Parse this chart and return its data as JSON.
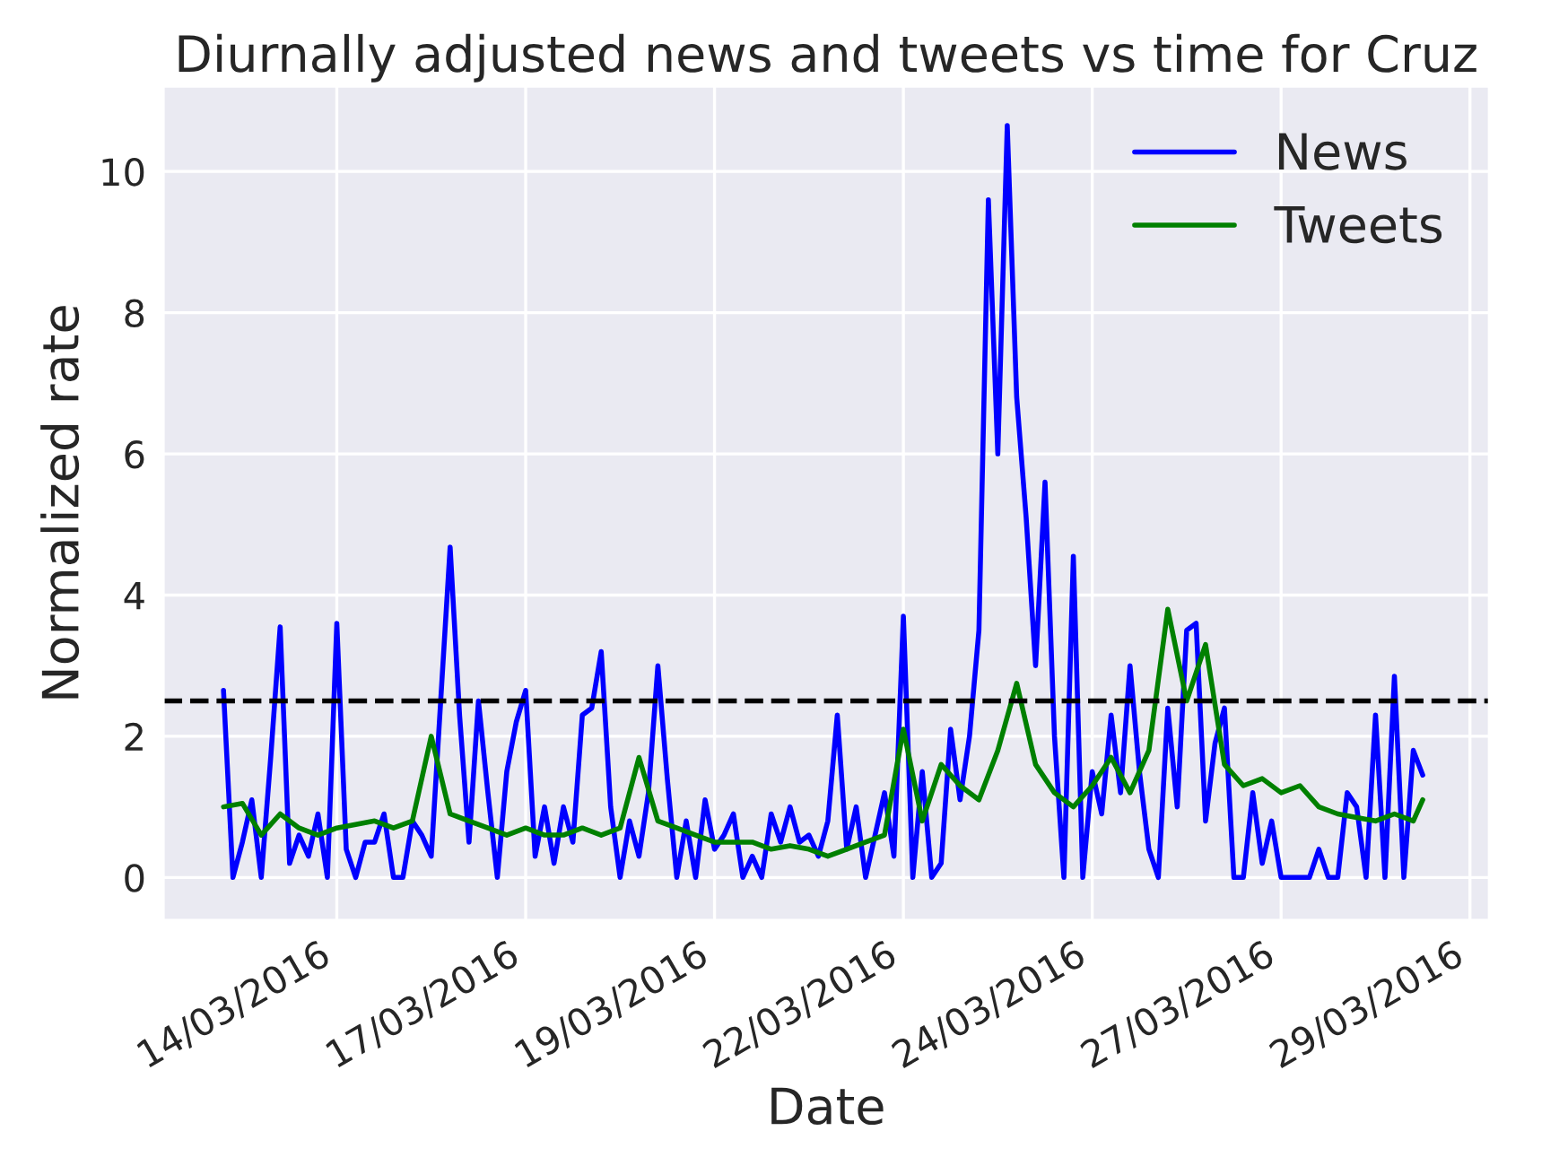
{
  "chart_data": {
    "type": "line",
    "title": "Diurnally adjusted news and tweets vs time for Cruz",
    "xlabel": "Date",
    "ylabel": "Normalized rate",
    "xlim": [
      "2016-03-12T05:00",
      "2016-03-29T18:00"
    ],
    "xticks": [
      {
        "value": "2016-03-14T12:00",
        "label": "14/03/2016"
      },
      {
        "value": "2016-03-17T00:00",
        "label": "17/03/2016"
      },
      {
        "value": "2016-03-19T12:00",
        "label": "19/03/2016"
      },
      {
        "value": "2016-03-22T00:00",
        "label": "22/03/2016"
      },
      {
        "value": "2016-03-24T12:00",
        "label": "24/03/2016"
      },
      {
        "value": "2016-03-27T00:00",
        "label": "27/03/2016"
      },
      {
        "value": "2016-03-29T12:00",
        "label": "29/03/2016"
      }
    ],
    "ylim": [
      -0.6,
      11.2
    ],
    "yticks": [
      0,
      2,
      4,
      6,
      8,
      10
    ],
    "grid": true,
    "legend": "top right",
    "line_style": "solid",
    "marker": "none",
    "ref_lines": [
      {
        "axis": "y",
        "value": 2.5,
        "color": "#000000",
        "line_style": "dashed"
      }
    ],
    "series": [
      {
        "name": "News",
        "color": "#0000ff",
        "x": [
          "2016-03-13T00:00",
          "2016-03-13T03:00",
          "2016-03-13T06:00",
          "2016-03-13T09:00",
          "2016-03-13T12:00",
          "2016-03-13T15:00",
          "2016-03-13T18:00",
          "2016-03-13T21:00",
          "2016-03-14T00:00",
          "2016-03-14T03:00",
          "2016-03-14T06:00",
          "2016-03-14T09:00",
          "2016-03-14T12:00",
          "2016-03-14T15:00",
          "2016-03-14T18:00",
          "2016-03-14T21:00",
          "2016-03-15T00:00",
          "2016-03-15T03:00",
          "2016-03-15T06:00",
          "2016-03-15T09:00",
          "2016-03-15T12:00",
          "2016-03-15T15:00",
          "2016-03-15T18:00",
          "2016-03-15T21:00",
          "2016-03-16T00:00",
          "2016-03-16T03:00",
          "2016-03-16T06:00",
          "2016-03-16T09:00",
          "2016-03-16T12:00",
          "2016-03-16T15:00",
          "2016-03-16T18:00",
          "2016-03-16T21:00",
          "2016-03-17T00:00",
          "2016-03-17T03:00",
          "2016-03-17T06:00",
          "2016-03-17T09:00",
          "2016-03-17T12:00",
          "2016-03-17T15:00",
          "2016-03-17T18:00",
          "2016-03-17T21:00",
          "2016-03-18T00:00",
          "2016-03-18T03:00",
          "2016-03-18T06:00",
          "2016-03-18T09:00",
          "2016-03-18T12:00",
          "2016-03-18T15:00",
          "2016-03-18T18:00",
          "2016-03-18T21:00",
          "2016-03-19T00:00",
          "2016-03-19T03:00",
          "2016-03-19T06:00",
          "2016-03-19T09:00",
          "2016-03-19T12:00",
          "2016-03-19T15:00",
          "2016-03-19T18:00",
          "2016-03-19T21:00",
          "2016-03-20T00:00",
          "2016-03-20T03:00",
          "2016-03-20T06:00",
          "2016-03-20T09:00",
          "2016-03-20T12:00",
          "2016-03-20T15:00",
          "2016-03-20T18:00",
          "2016-03-20T21:00",
          "2016-03-21T00:00",
          "2016-03-21T03:00",
          "2016-03-21T06:00",
          "2016-03-21T09:00",
          "2016-03-21T12:00",
          "2016-03-21T15:00",
          "2016-03-21T18:00",
          "2016-03-21T21:00",
          "2016-03-22T00:00",
          "2016-03-22T03:00",
          "2016-03-22T06:00",
          "2016-03-22T09:00",
          "2016-03-22T12:00",
          "2016-03-22T15:00",
          "2016-03-22T18:00",
          "2016-03-22T21:00",
          "2016-03-23T00:00",
          "2016-03-23T03:00",
          "2016-03-23T06:00",
          "2016-03-23T09:00",
          "2016-03-23T12:00",
          "2016-03-23T15:00",
          "2016-03-23T18:00",
          "2016-03-23T21:00",
          "2016-03-24T00:00",
          "2016-03-24T03:00",
          "2016-03-24T06:00",
          "2016-03-24T09:00",
          "2016-03-24T12:00",
          "2016-03-24T15:00",
          "2016-03-24T18:00",
          "2016-03-24T21:00",
          "2016-03-25T00:00",
          "2016-03-25T03:00",
          "2016-03-25T06:00",
          "2016-03-25T09:00",
          "2016-03-25T12:00",
          "2016-03-25T15:00",
          "2016-03-25T18:00",
          "2016-03-25T21:00",
          "2016-03-26T00:00",
          "2016-03-26T03:00",
          "2016-03-26T06:00",
          "2016-03-26T09:00",
          "2016-03-26T12:00",
          "2016-03-26T15:00",
          "2016-03-26T18:00",
          "2016-03-26T21:00",
          "2016-03-27T00:00",
          "2016-03-27T03:00",
          "2016-03-27T06:00",
          "2016-03-27T09:00",
          "2016-03-27T12:00",
          "2016-03-27T15:00",
          "2016-03-27T18:00",
          "2016-03-27T21:00",
          "2016-03-28T00:00",
          "2016-03-28T03:00",
          "2016-03-28T06:00",
          "2016-03-28T09:00",
          "2016-03-28T12:00",
          "2016-03-28T15:00",
          "2016-03-28T18:00",
          "2016-03-28T21:00"
        ],
        "values": [
          2.65,
          0,
          0.5,
          1.1,
          0,
          1.7,
          3.55,
          0.2,
          0.6,
          0.3,
          0.9,
          0,
          3.6,
          0.4,
          0,
          0.5,
          0.5,
          0.9,
          0,
          0,
          0.8,
          0.6,
          0.3,
          2.5,
          4.68,
          2.3,
          0.5,
          2.5,
          1.2,
          0,
          1.5,
          2.2,
          2.65,
          0.3,
          1.0,
          0.2,
          1.0,
          0.5,
          2.3,
          2.4,
          3.2,
          1.0,
          0,
          0.8,
          0.3,
          1.2,
          3.0,
          1.4,
          0,
          0.8,
          0,
          1.1,
          0.4,
          0.6,
          0.9,
          0,
          0.3,
          0,
          0.9,
          0.5,
          1.0,
          0.5,
          0.6,
          0.3,
          0.8,
          2.3,
          0.4,
          1.0,
          0,
          0.6,
          1.2,
          0.3,
          3.7,
          0,
          1.5,
          0,
          0.2,
          2.1,
          1.1,
          2.0,
          3.5,
          9.6,
          6.0,
          10.65,
          6.8,
          5.1,
          3.0,
          5.6,
          2.0,
          0,
          4.55,
          0,
          1.5,
          0.9,
          2.3,
          1.2,
          3.0,
          1.5,
          0.4,
          0,
          2.4,
          1.0,
          3.5,
          3.6,
          0.8,
          1.9,
          2.4,
          0,
          0,
          1.2,
          0.2,
          0.8,
          0,
          0,
          0,
          0,
          0.4,
          0,
          0,
          1.2,
          1.0,
          0,
          2.3,
          0,
          2.85,
          0,
          1.8,
          1.45
        ]
      },
      {
        "name": "Tweets",
        "color": "#008000",
        "x": [
          "2016-03-13T00:00",
          "2016-03-13T06:00",
          "2016-03-13T12:00",
          "2016-03-13T18:00",
          "2016-03-14T00:00",
          "2016-03-14T06:00",
          "2016-03-14T12:00",
          "2016-03-14T18:00",
          "2016-03-15T00:00",
          "2016-03-15T06:00",
          "2016-03-15T12:00",
          "2016-03-15T18:00",
          "2016-03-16T00:00",
          "2016-03-16T06:00",
          "2016-03-16T12:00",
          "2016-03-16T18:00",
          "2016-03-17T00:00",
          "2016-03-17T06:00",
          "2016-03-17T12:00",
          "2016-03-17T18:00",
          "2016-03-18T00:00",
          "2016-03-18T06:00",
          "2016-03-18T12:00",
          "2016-03-18T18:00",
          "2016-03-19T00:00",
          "2016-03-19T06:00",
          "2016-03-19T12:00",
          "2016-03-19T18:00",
          "2016-03-20T00:00",
          "2016-03-20T06:00",
          "2016-03-20T12:00",
          "2016-03-20T18:00",
          "2016-03-21T00:00",
          "2016-03-21T06:00",
          "2016-03-21T12:00",
          "2016-03-21T18:00",
          "2016-03-22T00:00",
          "2016-03-22T06:00",
          "2016-03-22T12:00",
          "2016-03-22T18:00",
          "2016-03-23T00:00",
          "2016-03-23T06:00",
          "2016-03-23T12:00",
          "2016-03-23T18:00",
          "2016-03-24T00:00",
          "2016-03-24T06:00",
          "2016-03-24T12:00",
          "2016-03-24T18:00",
          "2016-03-25T00:00",
          "2016-03-25T06:00",
          "2016-03-25T12:00",
          "2016-03-25T18:00",
          "2016-03-26T00:00",
          "2016-03-26T06:00",
          "2016-03-26T12:00",
          "2016-03-26T18:00",
          "2016-03-27T00:00",
          "2016-03-27T06:00",
          "2016-03-27T12:00",
          "2016-03-27T18:00",
          "2016-03-28T00:00",
          "2016-03-28T06:00",
          "2016-03-28T12:00",
          "2016-03-28T18:00",
          "2016-03-28T21:00"
        ],
        "values": [
          1.0,
          1.05,
          0.6,
          0.9,
          0.7,
          0.6,
          0.7,
          0.75,
          0.8,
          0.7,
          0.8,
          2.0,
          0.9,
          0.8,
          0.7,
          0.6,
          0.7,
          0.6,
          0.6,
          0.7,
          0.6,
          0.7,
          1.7,
          0.8,
          0.7,
          0.6,
          0.5,
          0.5,
          0.5,
          0.4,
          0.45,
          0.4,
          0.3,
          0.4,
          0.5,
          0.6,
          2.1,
          0.8,
          1.6,
          1.3,
          1.1,
          1.8,
          2.75,
          1.6,
          1.2,
          1.0,
          1.3,
          1.7,
          1.2,
          1.8,
          3.8,
          2.5,
          3.3,
          1.6,
          1.3,
          1.4,
          1.2,
          1.3,
          1.0,
          0.9,
          0.85,
          0.8,
          0.9,
          0.8,
          1.1
        ]
      }
    ]
  }
}
